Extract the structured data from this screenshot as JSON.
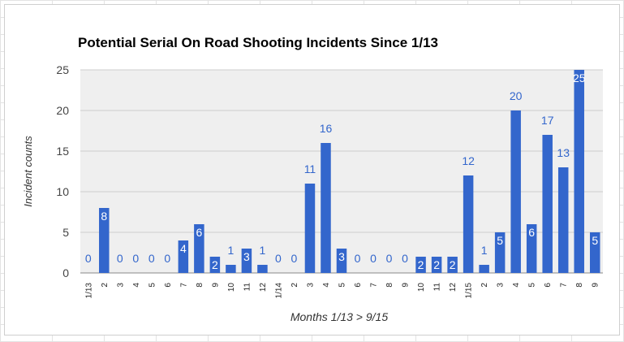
{
  "chart_data": {
    "type": "bar",
    "title": "Potential Serial On Road Shooting Incidents Since 1/13",
    "xlabel": "Months 1/13 > 9/15",
    "ylabel": "Incident counts",
    "ylim": [
      0,
      25
    ],
    "yticks": [
      "0",
      "5",
      "10",
      "15",
      "20",
      "25"
    ],
    "grid": true,
    "categories": [
      "1/13",
      "2",
      "3",
      "4",
      "5",
      "6",
      "7",
      "8",
      "9",
      "10",
      "11",
      "12",
      "1/14",
      "2",
      "3",
      "4",
      "5",
      "6",
      "7",
      "8",
      "9",
      "10",
      "11",
      "12",
      "1/15",
      "2",
      "3",
      "4",
      "5",
      "6",
      "7",
      "8",
      "9"
    ],
    "values": [
      0,
      8,
      0,
      0,
      0,
      0,
      4,
      6,
      2,
      1,
      3,
      1,
      0,
      0,
      11,
      16,
      3,
      0,
      0,
      0,
      0,
      2,
      2,
      2,
      12,
      1,
      5,
      20,
      6,
      17,
      13,
      25,
      5
    ],
    "value_labels": [
      "0",
      "8",
      "0",
      "0",
      "0",
      "0",
      "4",
      "6",
      "2",
      "1",
      "3",
      "1",
      "0",
      "0",
      "11",
      "16",
      "3",
      "0",
      "0",
      "0",
      "0",
      "2",
      "2",
      "2",
      "12",
      "1",
      "5",
      "20",
      "6",
      "17",
      "13",
      "25",
      "5"
    ],
    "label_position": [
      "outside",
      "inside",
      "outside",
      "outside",
      "outside",
      "outside",
      "inside",
      "inside",
      "inside",
      "outside",
      "inside",
      "outside",
      "outside",
      "outside",
      "outside",
      "outside",
      "inside",
      "outside",
      "outside",
      "outside",
      "outside",
      "inside",
      "inside",
      "inside",
      "outside",
      "outside",
      "inside",
      "outside",
      "inside",
      "outside",
      "outside",
      "inside",
      "inside"
    ],
    "colors": {
      "bar": "#3366cc",
      "label_outside": "#3366cc",
      "label_inside": "#ffffff",
      "plot_bg": "#efefef",
      "grid": "#cccccc",
      "title": "#000000",
      "axis_text": "#444444"
    }
  }
}
